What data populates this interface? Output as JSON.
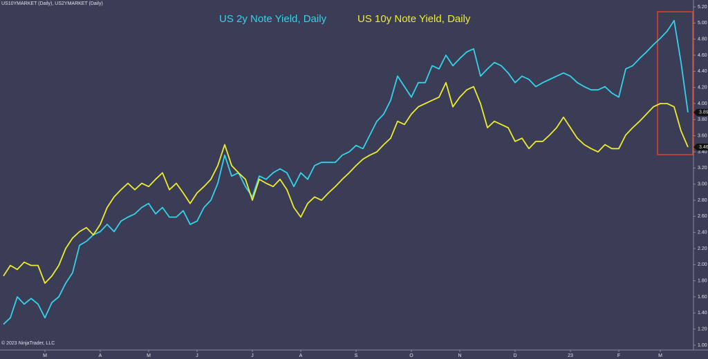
{
  "chart_data": {
    "type": "line",
    "header": "US10YMARKET (Daily), US2YMARKET (Daily)",
    "footer": "© 2023 NinjaTrader, LLC",
    "categories": [
      null,
      null,
      null,
      null,
      null,
      null,
      "M",
      null,
      null,
      null,
      null,
      null,
      null,
      null,
      "A",
      null,
      null,
      null,
      null,
      null,
      null,
      "M",
      null,
      null,
      null,
      null,
      null,
      null,
      "J",
      null,
      null,
      null,
      null,
      null,
      null,
      null,
      "J",
      null,
      null,
      null,
      null,
      null,
      null,
      "A",
      null,
      null,
      null,
      null,
      null,
      null,
      null,
      "S",
      null,
      null,
      null,
      null,
      null,
      null,
      null,
      "O",
      null,
      null,
      null,
      null,
      null,
      null,
      "N",
      null,
      null,
      null,
      null,
      null,
      null,
      null,
      "D",
      null,
      null,
      null,
      null,
      null,
      null,
      null,
      "23",
      null,
      null,
      null,
      null,
      null,
      null,
      "F",
      null,
      null,
      null,
      null,
      null,
      "M",
      null,
      null,
      null,
      null
    ],
    "series": [
      {
        "name": "US 2y Note Yield, Daily",
        "color": "#33d3ea",
        "values": [
          1.26,
          1.34,
          1.6,
          1.51,
          1.58,
          1.51,
          1.34,
          1.53,
          1.6,
          1.77,
          1.9,
          2.24,
          2.29,
          2.37,
          2.41,
          2.5,
          2.41,
          2.54,
          2.59,
          2.63,
          2.71,
          2.76,
          2.63,
          2.71,
          2.59,
          2.59,
          2.67,
          2.5,
          2.54,
          2.71,
          2.8,
          3.01,
          3.36,
          3.1,
          3.14,
          2.97,
          2.84,
          3.1,
          3.06,
          3.14,
          3.19,
          3.14,
          2.97,
          3.14,
          3.06,
          3.23,
          3.27,
          3.27,
          3.27,
          3.36,
          3.4,
          3.48,
          3.44,
          3.61,
          3.78,
          3.87,
          4.04,
          4.34,
          4.21,
          4.08,
          4.26,
          4.26,
          4.47,
          4.43,
          4.6,
          4.47,
          4.56,
          4.64,
          4.68,
          4.34,
          4.43,
          4.51,
          4.47,
          4.38,
          4.26,
          4.34,
          4.3,
          4.21,
          4.26,
          4.3,
          4.34,
          4.38,
          4.34,
          4.26,
          4.21,
          4.17,
          4.17,
          4.21,
          4.13,
          4.08,
          4.43,
          4.47,
          4.56,
          4.64,
          4.73,
          4.81,
          4.9,
          5.03,
          4.51,
          3.89
        ]
      },
      {
        "name": "US 10y Note Yield, Daily",
        "color": "#eeec2e",
        "values": [
          1.86,
          1.99,
          1.94,
          2.03,
          1.99,
          1.99,
          1.77,
          1.86,
          1.99,
          2.2,
          2.33,
          2.41,
          2.46,
          2.37,
          2.5,
          2.71,
          2.84,
          2.93,
          3.01,
          2.93,
          3.01,
          2.97,
          3.06,
          3.14,
          2.93,
          3.01,
          2.89,
          2.76,
          2.89,
          2.97,
          3.06,
          3.23,
          3.49,
          3.23,
          3.14,
          3.06,
          2.8,
          3.06,
          3.01,
          2.97,
          3.06,
          2.93,
          2.71,
          2.59,
          2.76,
          2.84,
          2.8,
          2.89,
          2.97,
          3.06,
          3.14,
          3.23,
          3.31,
          3.36,
          3.4,
          3.49,
          3.57,
          3.78,
          3.74,
          3.87,
          3.96,
          4.0,
          4.04,
          4.08,
          4.26,
          3.96,
          4.08,
          4.17,
          4.21,
          4.0,
          3.7,
          3.78,
          3.74,
          3.7,
          3.53,
          3.57,
          3.44,
          3.53,
          3.53,
          3.61,
          3.7,
          3.83,
          3.7,
          3.57,
          3.49,
          3.44,
          3.4,
          3.49,
          3.44,
          3.44,
          3.61,
          3.7,
          3.78,
          3.87,
          3.96,
          4.0,
          4.0,
          3.96,
          3.66,
          3.46
        ]
      }
    ],
    "ylim": [
      1.0,
      5.2
    ],
    "yticks": [
      {
        "value": 1.0,
        "label": "1.00"
      },
      {
        "value": 1.2,
        "label": "1.20"
      },
      {
        "value": 1.4,
        "label": "1.40"
      },
      {
        "value": 1.6,
        "label": "1.60"
      },
      {
        "value": 1.8,
        "label": "1.80"
      },
      {
        "value": 2.0,
        "label": "2.00"
      },
      {
        "value": 2.2,
        "label": "2.20"
      },
      {
        "value": 2.4,
        "label": "2.40"
      },
      {
        "value": 2.6,
        "label": "2.60"
      },
      {
        "value": 2.8,
        "label": "2.80"
      },
      {
        "value": 3.0,
        "label": "3.00"
      },
      {
        "value": 3.2,
        "label": "3.20"
      },
      {
        "value": 3.4,
        "label": "3.40"
      },
      {
        "value": 3.6,
        "label": "3.60"
      },
      {
        "value": 3.8,
        "label": "3.80"
      },
      {
        "value": 4.0,
        "label": "4.00"
      },
      {
        "value": 4.2,
        "label": "4.20"
      },
      {
        "value": 4.4,
        "label": "4.40"
      },
      {
        "value": 4.6,
        "label": "4.60"
      },
      {
        "value": 4.8,
        "label": "4.80"
      },
      {
        "value": 5.0,
        "label": "5.00"
      },
      {
        "value": 5.2,
        "label": "5.20"
      }
    ],
    "grid": false
  }
}
